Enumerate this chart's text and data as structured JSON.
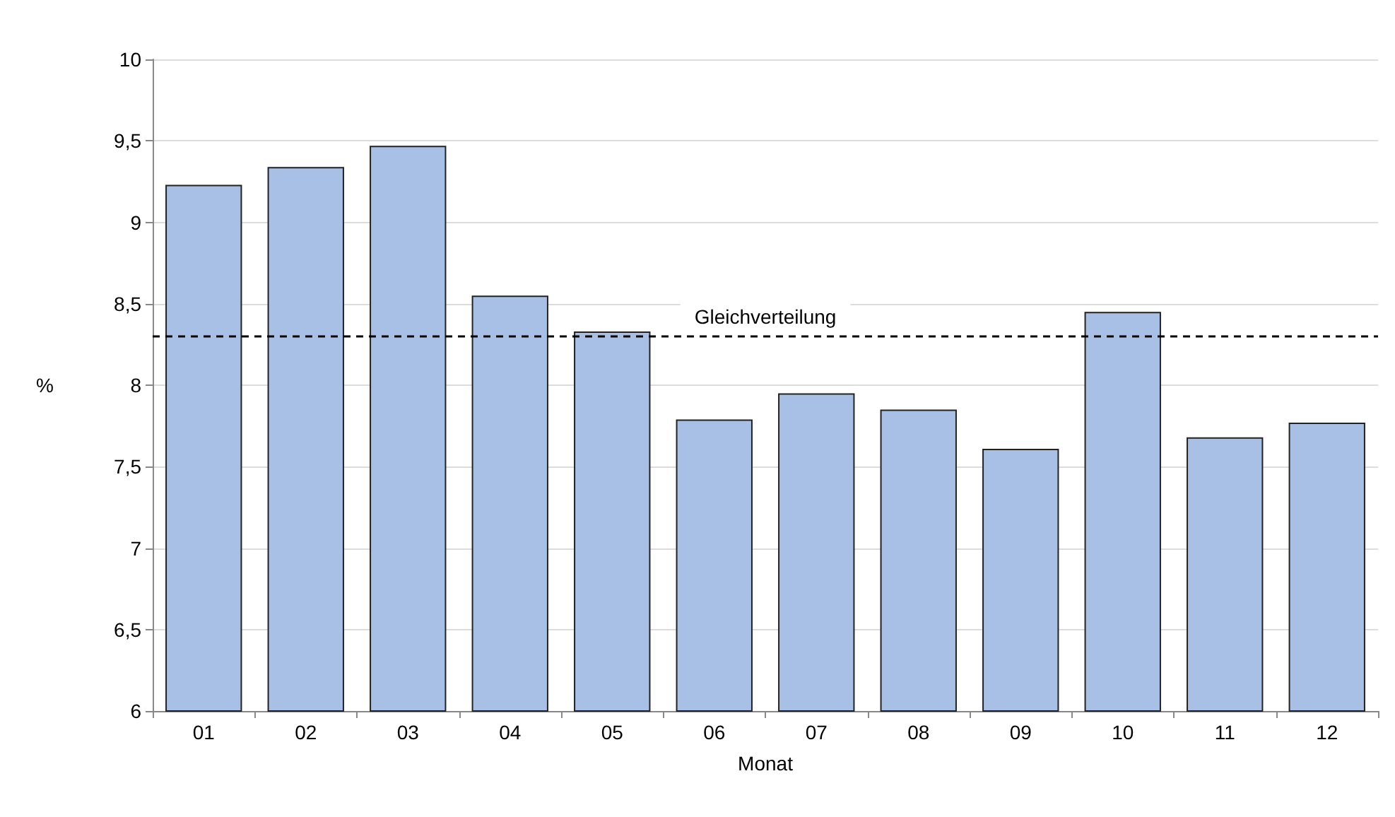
{
  "chart_data": {
    "type": "bar",
    "xlabel": "Monat",
    "ylabel": "%",
    "categories": [
      "01",
      "02",
      "03",
      "04",
      "05",
      "06",
      "07",
      "08",
      "09",
      "10",
      "11",
      "12"
    ],
    "values": [
      9.23,
      9.34,
      9.47,
      8.55,
      8.33,
      7.79,
      7.95,
      7.85,
      7.61,
      8.45,
      7.68,
      7.77
    ],
    "color": "#a9c0e6",
    "ylim": [
      6,
      10
    ],
    "yticks": [
      6,
      {
        "value": 6.5,
        "label": "6,5"
      },
      7,
      {
        "value": 7.5,
        "label": "7,5"
      },
      8,
      {
        "value": 8.5,
        "label": "8,5"
      },
      9,
      {
        "value": 9.5,
        "label": "9,5"
      },
      10
    ],
    "grid": "y",
    "ref_lines": [
      {
        "axis": "y",
        "value": 8.3,
        "label": "Gleichverteilung",
        "color": "#000000",
        "line_style": "dashed"
      }
    ]
  }
}
